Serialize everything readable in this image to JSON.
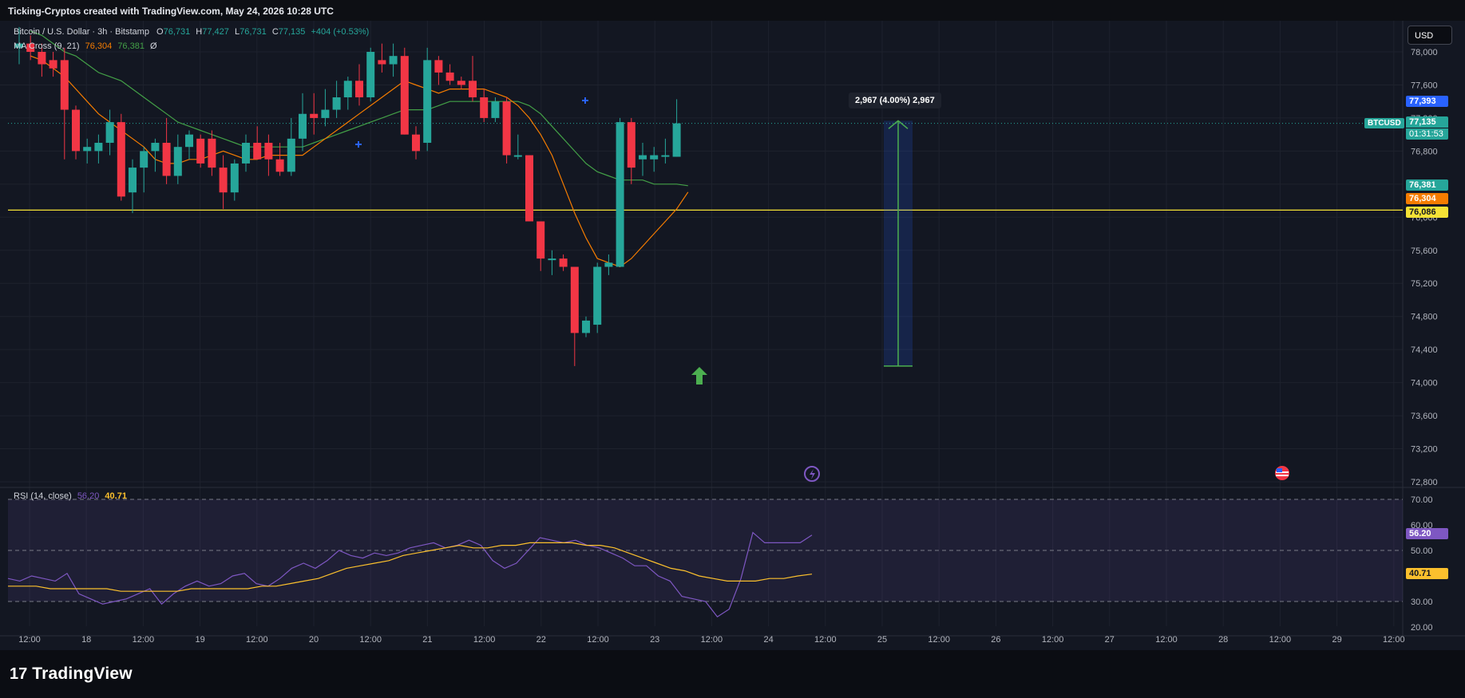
{
  "caption": "Ticking-Cryptos created with TradingView.com, May 24, 2026 10:28 UTC",
  "legend": {
    "symbol": "Bitcoin / U.S. Dollar · 3h · Bitstamp",
    "o_label": "O",
    "o": "76,731",
    "h_label": "H",
    "h": "77,427",
    "l_label": "L",
    "l": "76,731",
    "c_label": "C",
    "c": "77,135",
    "change": "+404 (+0.53%)",
    "ma_label": "MA Cross (9, 21)",
    "ma_fast": "76,304",
    "ma_slow": "76,381",
    "ma_suffix": "Ø",
    "rsi_label": "RSI (14, close)",
    "rsi": "56.20",
    "rsi_ma": "40.71"
  },
  "currency_button": "USD",
  "price_labels": {
    "alert": "77,393",
    "symbol_tag": "BTCUSD",
    "last": "77,135",
    "countdown": "01:31:53",
    "ma_slow": "76,381",
    "ma_fast": "76,304",
    "hline": "76,086",
    "rsi": "56.20",
    "rsi_ma": "40.71"
  },
  "measure_label": "2,967 (4.00%) 2,967",
  "brand": "TradingView",
  "brand_mark": "17",
  "colors": {
    "up": "#26a69a",
    "down": "#f23645",
    "ma_fast": "#f57c00",
    "ma_slow": "#43a047",
    "hline": "#f5e236",
    "rsi_line": "#7e57c2",
    "rsi_ma": "#fbc02d",
    "measure": "#4caf50",
    "alert": "#2962ff"
  },
  "chart_data": {
    "type": "candlestick",
    "symbol": "BTCUSD",
    "timeframe": "3h",
    "y_axis": {
      "ticks": [
        "78,000",
        "77,600",
        "77,200",
        "76,800",
        "76,400",
        "76,000",
        "75,600",
        "75,200",
        "74,800",
        "74,400",
        "74,000",
        "73,600",
        "73,200",
        "72,800"
      ],
      "range": [
        72600,
        78200
      ]
    },
    "x_axis": {
      "ticks": [
        "12:00",
        "18",
        "12:00",
        "19",
        "12:00",
        "20",
        "12:00",
        "21",
        "12:00",
        "22",
        "12:00",
        "23",
        "12:00",
        "24",
        "12:00",
        "25",
        "12:00",
        "26",
        "12:00",
        "27",
        "12:00",
        "28",
        "12:00",
        "29",
        "12:00"
      ]
    },
    "horizontal_line": 76086,
    "measure": {
      "from": 74200,
      "to": 77167,
      "text": "2,967 (4.00%) 2,967"
    },
    "candles": [
      {
        "o": 78050,
        "h": 78300,
        "l": 77850,
        "c": 78100
      },
      {
        "o": 78100,
        "h": 78200,
        "l": 77900,
        "c": 78000
      },
      {
        "o": 78000,
        "h": 78100,
        "l": 77700,
        "c": 77850
      },
      {
        "o": 77900,
        "h": 78000,
        "l": 77700,
        "c": 77800
      },
      {
        "o": 77900,
        "h": 78050,
        "l": 76700,
        "c": 77300
      },
      {
        "o": 77300,
        "h": 77350,
        "l": 76700,
        "c": 76800
      },
      {
        "o": 76800,
        "h": 76950,
        "l": 76650,
        "c": 76850
      },
      {
        "o": 76800,
        "h": 77000,
        "l": 76650,
        "c": 76900
      },
      {
        "o": 76900,
        "h": 77300,
        "l": 76750,
        "c": 77150
      },
      {
        "o": 77150,
        "h": 77250,
        "l": 76200,
        "c": 76250
      },
      {
        "o": 76300,
        "h": 76700,
        "l": 76050,
        "c": 76600
      },
      {
        "o": 76600,
        "h": 76850,
        "l": 76300,
        "c": 76800
      },
      {
        "o": 76800,
        "h": 76950,
        "l": 76550,
        "c": 76900
      },
      {
        "o": 76900,
        "h": 77200,
        "l": 76400,
        "c": 76500
      },
      {
        "o": 76500,
        "h": 77000,
        "l": 76400,
        "c": 76850
      },
      {
        "o": 76850,
        "h": 77050,
        "l": 76700,
        "c": 77000
      },
      {
        "o": 76950,
        "h": 77000,
        "l": 76600,
        "c": 76650
      },
      {
        "o": 76950,
        "h": 77050,
        "l": 76500,
        "c": 76600
      },
      {
        "o": 76600,
        "h": 76750,
        "l": 76100,
        "c": 76300
      },
      {
        "o": 76300,
        "h": 76700,
        "l": 76200,
        "c": 76650
      },
      {
        "o": 76650,
        "h": 77000,
        "l": 76550,
        "c": 76900
      },
      {
        "o": 76900,
        "h": 77100,
        "l": 76700,
        "c": 76700
      },
      {
        "o": 76900,
        "h": 77000,
        "l": 76500,
        "c": 76700
      },
      {
        "o": 76700,
        "h": 76900,
        "l": 76500,
        "c": 76550
      },
      {
        "o": 76550,
        "h": 77200,
        "l": 76500,
        "c": 76950
      },
      {
        "o": 76950,
        "h": 77500,
        "l": 76800,
        "c": 77250
      },
      {
        "o": 77250,
        "h": 77500,
        "l": 77000,
        "c": 77200
      },
      {
        "o": 77200,
        "h": 77550,
        "l": 77100,
        "c": 77300
      },
      {
        "o": 77300,
        "h": 77650,
        "l": 77200,
        "c": 77450
      },
      {
        "o": 77450,
        "h": 77700,
        "l": 77300,
        "c": 77650
      },
      {
        "o": 77650,
        "h": 77850,
        "l": 77350,
        "c": 77450
      },
      {
        "o": 77450,
        "h": 78050,
        "l": 77400,
        "c": 78000
      },
      {
        "o": 77900,
        "h": 78100,
        "l": 77750,
        "c": 77850
      },
      {
        "o": 77850,
        "h": 78100,
        "l": 77700,
        "c": 77950
      },
      {
        "o": 77950,
        "h": 78050,
        "l": 77000,
        "c": 77000
      },
      {
        "o": 77000,
        "h": 77100,
        "l": 76700,
        "c": 76800
      },
      {
        "o": 76900,
        "h": 78050,
        "l": 76800,
        "c": 77900
      },
      {
        "o": 77900,
        "h": 77950,
        "l": 77600,
        "c": 77750
      },
      {
        "o": 77750,
        "h": 77850,
        "l": 77600,
        "c": 77650
      },
      {
        "o": 77650,
        "h": 77700,
        "l": 77550,
        "c": 77600
      },
      {
        "o": 77650,
        "h": 77950,
        "l": 77400,
        "c": 77450
      },
      {
        "o": 77450,
        "h": 77550,
        "l": 77150,
        "c": 77200
      },
      {
        "o": 77200,
        "h": 77450,
        "l": 77150,
        "c": 77400
      },
      {
        "o": 77400,
        "h": 77450,
        "l": 76650,
        "c": 76750
      },
      {
        "o": 76750,
        "h": 77000,
        "l": 76700,
        "c": 76750
      },
      {
        "o": 76750,
        "h": 76750,
        "l": 75950,
        "c": 75950
      },
      {
        "o": 75950,
        "h": 75950,
        "l": 75350,
        "c": 75500
      },
      {
        "o": 75500,
        "h": 75600,
        "l": 75300,
        "c": 75500
      },
      {
        "o": 75500,
        "h": 75550,
        "l": 75350,
        "c": 75400
      },
      {
        "o": 75400,
        "h": 75400,
        "l": 74200,
        "c": 74600
      },
      {
        "o": 74600,
        "h": 74800,
        "l": 74550,
        "c": 74750
      },
      {
        "o": 74700,
        "h": 75450,
        "l": 74600,
        "c": 75400
      },
      {
        "o": 75400,
        "h": 75550,
        "l": 75300,
        "c": 75450
      },
      {
        "o": 75400,
        "h": 77200,
        "l": 75400,
        "c": 77150
      },
      {
        "o": 77150,
        "h": 77200,
        "l": 76400,
        "c": 76600
      },
      {
        "o": 76700,
        "h": 76900,
        "l": 76500,
        "c": 76750
      },
      {
        "o": 76700,
        "h": 76850,
        "l": 76550,
        "c": 76750
      },
      {
        "o": 76750,
        "h": 76950,
        "l": 76650,
        "c": 76750
      },
      {
        "o": 76731,
        "h": 77427,
        "l": 76731,
        "c": 77135
      }
    ],
    "ma_fast": [
      77950,
      77900,
      77800,
      77700,
      77550,
      77400,
      77250,
      77150,
      77050,
      76950,
      76850,
      76700,
      76650,
      76650,
      76700,
      76700,
      76750,
      76800,
      76750,
      76700,
      76700,
      76750,
      76750,
      76750,
      76750,
      76850,
      76950,
      77050,
      77150,
      77250,
      77350,
      77450,
      77550,
      77650,
      77600,
      77550,
      77500,
      77550,
      77550,
      77550,
      77550,
      77500,
      77450,
      77350,
      77200,
      77000,
      76750,
      76400,
      76050,
      75750,
      75500,
      75450,
      75400,
      75500,
      75650,
      75800,
      75950,
      76100,
      76304
    ],
    "ma_slow": [
      78250,
      78200,
      78100,
      78000,
      77950,
      77850,
      77750,
      77700,
      77650,
      77550,
      77450,
      77350,
      77250,
      77150,
      77100,
      77050,
      77000,
      76950,
      76900,
      76850,
      76850,
      76850,
      76850,
      76850,
      76850,
      76900,
      76950,
      77000,
      77050,
      77100,
      77150,
      77200,
      77250,
      77300,
      77300,
      77300,
      77350,
      77400,
      77400,
      77400,
      77400,
      77400,
      77400,
      77400,
      77350,
      77250,
      77100,
      76950,
      76800,
      76650,
      76550,
      76500,
      76450,
      76450,
      76450,
      76400,
      76400,
      76400,
      76381
    ],
    "rsi": {
      "ticks": [
        "70.00",
        "60.00",
        "50.00",
        "30.00",
        "20.00"
      ],
      "range": [
        20,
        72
      ],
      "upper_band": 70,
      "lower_band": 30,
      "mid": 50,
      "rsi_values": [
        39,
        38,
        40,
        39,
        38,
        41,
        33,
        31,
        29,
        30,
        31,
        33,
        35,
        29,
        33,
        36,
        38,
        36,
        37,
        40,
        41,
        37,
        36,
        39,
        43,
        45,
        43,
        46,
        50,
        48,
        47,
        49,
        48,
        49,
        51,
        52,
        53,
        51,
        52,
        54,
        52,
        46,
        43,
        45,
        50,
        55,
        54,
        53,
        54,
        52,
        51,
        49,
        47,
        44,
        44,
        40,
        38,
        32,
        31,
        30,
        24,
        27,
        39,
        57,
        53,
        53,
        53,
        53,
        56
      ],
      "rsi_ma_values": [
        36,
        36,
        36,
        35,
        35,
        35,
        35,
        35,
        34,
        34,
        34,
        34,
        34,
        35,
        35,
        35,
        35,
        35,
        36,
        36,
        37,
        38,
        39,
        41,
        43,
        44,
        45,
        46,
        48,
        49,
        50,
        51,
        52,
        51,
        51,
        52,
        52,
        53,
        53,
        53,
        53,
        52,
        52,
        51,
        49,
        47,
        45,
        43,
        42,
        40,
        39,
        38,
        38,
        38,
        39,
        39,
        40,
        40.71
      ]
    }
  }
}
